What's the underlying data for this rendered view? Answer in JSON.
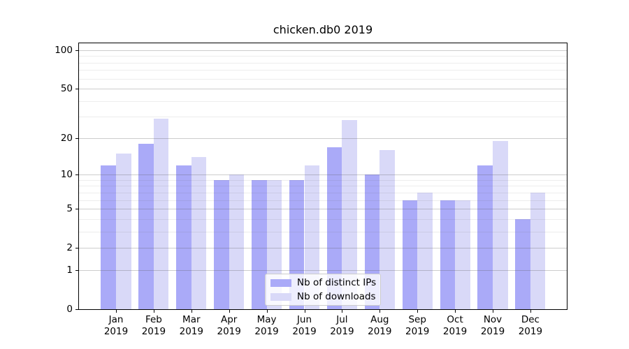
{
  "chart_data": {
    "type": "bar",
    "title": "chicken.db0 2019",
    "categories": [
      "Jan 2019",
      "Feb 2019",
      "Mar 2019",
      "Apr 2019",
      "May 2019",
      "Jun 2019",
      "Jul 2019",
      "Aug 2019",
      "Sep 2019",
      "Oct 2019",
      "Nov 2019",
      "Dec 2019"
    ],
    "series": [
      {
        "name": "Nb of distinct IPs",
        "values": [
          12,
          18,
          12,
          9,
          9,
          9,
          17,
          10,
          6,
          6,
          12,
          4
        ],
        "color": "#aaaaf8"
      },
      {
        "name": "Nb of downloads",
        "values": [
          15,
          29,
          14,
          10,
          9,
          12,
          28,
          16,
          7,
          6,
          19,
          7
        ],
        "color": "#d9d9f8"
      }
    ],
    "xlabel": "",
    "ylabel": "",
    "yscale": "log10(1+v)",
    "yticks": [
      0,
      1,
      2,
      5,
      10,
      20,
      50,
      100
    ],
    "yticks_minor": [
      3,
      4,
      6,
      7,
      8,
      9,
      30,
      40,
      60,
      70,
      80,
      90
    ],
    "ylim": [
      0,
      113.4
    ],
    "grid": "on",
    "grid_above_bars": true,
    "legend_position": "lower center"
  },
  "colors": {
    "distinct_ips": "#aaaaf8",
    "downloads": "#d9d9f8",
    "spine": "#000000",
    "legend_border": "#cccccc"
  }
}
